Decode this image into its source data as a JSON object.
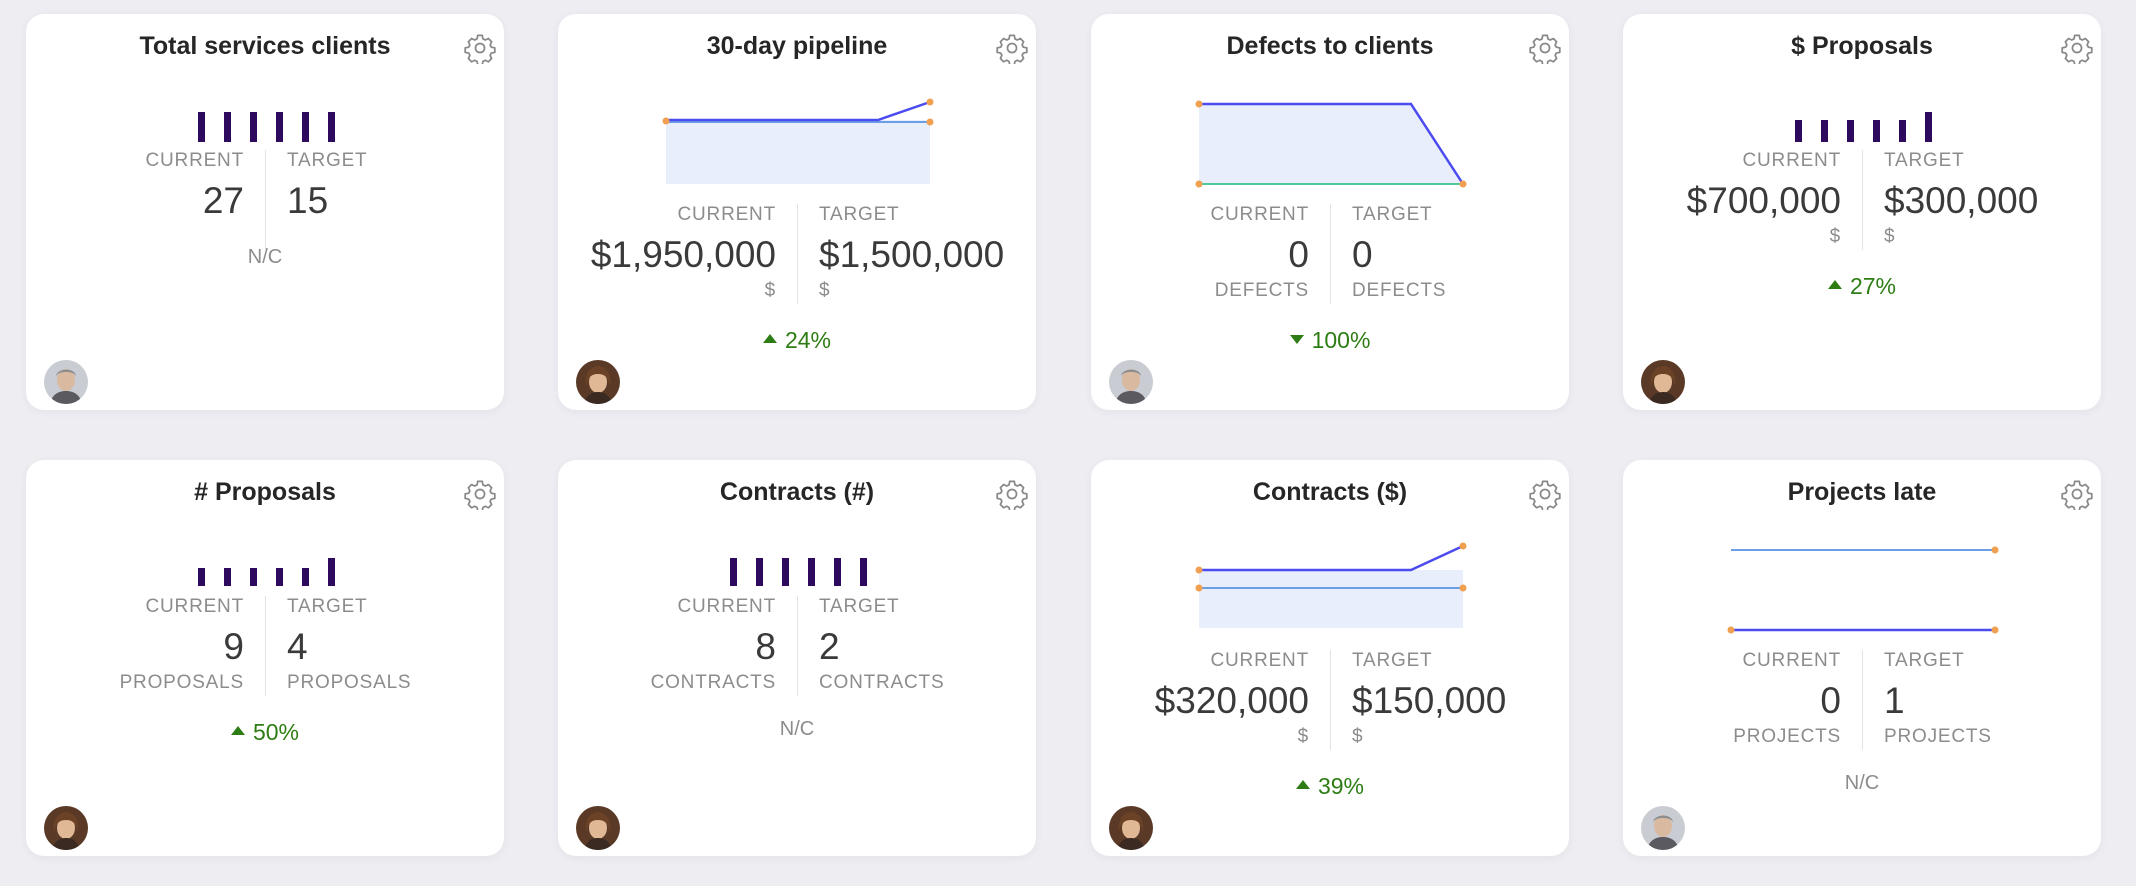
{
  "colors": {
    "bar": "#2e0a5e",
    "current_line": "#4b4bf0",
    "target_line": "#6a9fe6",
    "target_line_green": "#52c99a",
    "area_fill": "#e8eefc",
    "dot": "#f0a050",
    "trend_positive": "#2e7d14"
  },
  "cards": [
    {
      "title": "Total services clients",
      "current_label": "CURRENT",
      "target_label": "TARGET",
      "current": "27",
      "target": "15",
      "footer": "N/C",
      "owner": "male-gray-hair"
    },
    {
      "title": "30-day pipeline",
      "current_label": "CURRENT",
      "target_label": "TARGET",
      "current": "$1,950,000",
      "target": "$1,500,000",
      "current_unit": "$",
      "target_unit": "$",
      "footer": "24%",
      "owner": "female-brown-hair"
    },
    {
      "title": "Defects to clients",
      "current_label": "CURRENT",
      "target_label": "TARGET",
      "current": "0",
      "target": "0",
      "current_unit": "DEFECTS",
      "target_unit": "DEFECTS",
      "footer": "100%",
      "owner": "male-gray-hair"
    },
    {
      "title": "$ Proposals",
      "current_label": "CURRENT",
      "target_label": "TARGET",
      "current": "$700,000",
      "target": "$300,000",
      "current_unit": "$",
      "target_unit": "$",
      "footer": "27%",
      "owner": "female-brown-hair"
    },
    {
      "title": "# Proposals",
      "current_label": "CURRENT",
      "target_label": "TARGET",
      "current": "9",
      "target": "4",
      "current_unit": "PROPOSALS",
      "target_unit": "PROPOSALS",
      "footer": "50%",
      "owner": "female-brown-hair"
    },
    {
      "title": "Contracts (#)",
      "current_label": "CURRENT",
      "target_label": "TARGET",
      "current": "8",
      "target": "2",
      "current_unit": "CONTRACTS",
      "target_unit": "CONTRACTS",
      "footer": "N/C",
      "owner": "female-brown-hair"
    },
    {
      "title": "Contracts ($)",
      "current_label": "CURRENT",
      "target_label": "TARGET",
      "current": "$320,000",
      "target": "$150,000",
      "current_unit": "$",
      "target_unit": "$",
      "footer": "39%",
      "owner": "female-brown-hair"
    },
    {
      "title": "Projects late",
      "current_label": "CURRENT",
      "target_label": "TARGET",
      "current": "0",
      "target": "1",
      "current_unit": "PROJECTS",
      "target_unit": "PROJECTS",
      "footer": "N/C",
      "owner": "male-gray-hair"
    }
  ]
}
